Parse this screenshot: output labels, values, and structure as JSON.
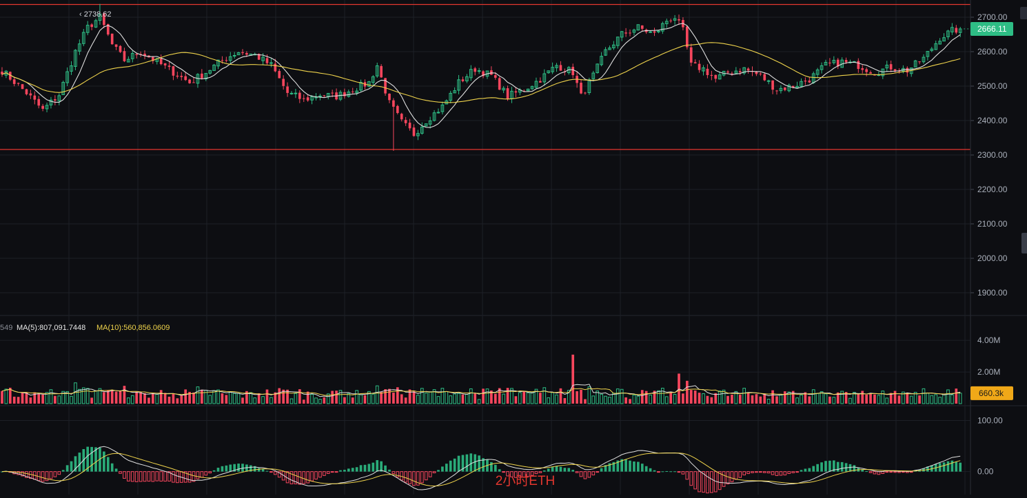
{
  "chart_title": "2小时ETH",
  "colors": {
    "background": "#0d0e12",
    "up": "#2ebd85",
    "down": "#f6465d",
    "ma_fast": "#e0e0e0",
    "ma_slow": "#f0d44c",
    "level_line": "#e5372f",
    "grid": "#1d2027",
    "axis_text": "#aab0bb",
    "price_tag": "#2ebd85",
    "volume_tag": "#f0a818",
    "title_overlay": "#e5372f"
  },
  "price_panel": {
    "ylim": [
      1840,
      2750
    ],
    "ticks": [
      "2700.00",
      "2600.00",
      "2500.00",
      "2400.00",
      "2300.00",
      "2200.00",
      "2100.00",
      "2000.00",
      "1900.00"
    ],
    "tick_values": [
      2700,
      2600,
      2500,
      2400,
      2300,
      2200,
      2100,
      2000,
      1900
    ],
    "high_label": "2738.62",
    "high_value": 2738.62,
    "current_price": "2666.11",
    "current_value": 2666.11,
    "level_lines": [
      2737,
      2316
    ]
  },
  "volume_panel": {
    "ma_label_cut": "549",
    "ma5_label": "MA(5):807,091.7448",
    "ma10_label": "MA(10):560,856.0609",
    "ticks": [
      "4.00M",
      "2.00M"
    ],
    "tick_values": [
      4000000,
      2000000
    ],
    "current_volume": "660.3k",
    "current_value": 660300,
    "ylim": [
      0,
      4400000
    ]
  },
  "macd_panel": {
    "ticks": [
      "100.00",
      "0.00"
    ],
    "tick_values": [
      100,
      0
    ],
    "ylim": [
      -45,
      125
    ]
  },
  "chart_data": {
    "type": "candlestick",
    "candle_count": 236,
    "close_anchors": [
      [
        0,
        2545
      ],
      [
        6,
        2480
      ],
      [
        10,
        2430
      ],
      [
        14,
        2475
      ],
      [
        18,
        2600
      ],
      [
        21,
        2670
      ],
      [
        24,
        2700
      ],
      [
        27,
        2620
      ],
      [
        30,
        2575
      ],
      [
        34,
        2600
      ],
      [
        38,
        2570
      ],
      [
        42,
        2540
      ],
      [
        46,
        2510
      ],
      [
        50,
        2540
      ],
      [
        54,
        2575
      ],
      [
        58,
        2600
      ],
      [
        62,
        2590
      ],
      [
        66,
        2560
      ],
      [
        70,
        2480
      ],
      [
        74,
        2460
      ],
      [
        78,
        2475
      ],
      [
        82,
        2470
      ],
      [
        86,
        2490
      ],
      [
        90,
        2510
      ],
      [
        92,
        2560
      ],
      [
        95,
        2450
      ],
      [
        98,
        2395
      ],
      [
        101,
        2360
      ],
      [
        104,
        2400
      ],
      [
        108,
        2440
      ],
      [
        112,
        2510
      ],
      [
        116,
        2550
      ],
      [
        120,
        2530
      ],
      [
        124,
        2470
      ],
      [
        128,
        2490
      ],
      [
        132,
        2520
      ],
      [
        136,
        2560
      ],
      [
        140,
        2540
      ],
      [
        142,
        2470
      ],
      [
        145,
        2530
      ],
      [
        148,
        2600
      ],
      [
        152,
        2650
      ],
      [
        156,
        2670
      ],
      [
        160,
        2650
      ],
      [
        163,
        2690
      ],
      [
        165,
        2700
      ],
      [
        167,
        2660
      ],
      [
        169,
        2560
      ],
      [
        172,
        2550
      ],
      [
        175,
        2520
      ],
      [
        178,
        2540
      ],
      [
        182,
        2550
      ],
      [
        186,
        2530
      ],
      [
        190,
        2490
      ],
      [
        194,
        2500
      ],
      [
        198,
        2520
      ],
      [
        202,
        2560
      ],
      [
        206,
        2570
      ],
      [
        210,
        2560
      ],
      [
        214,
        2540
      ],
      [
        218,
        2555
      ],
      [
        222,
        2545
      ],
      [
        226,
        2580
      ],
      [
        230,
        2640
      ],
      [
        233,
        2660
      ],
      [
        235,
        2666.11
      ]
    ]
  }
}
